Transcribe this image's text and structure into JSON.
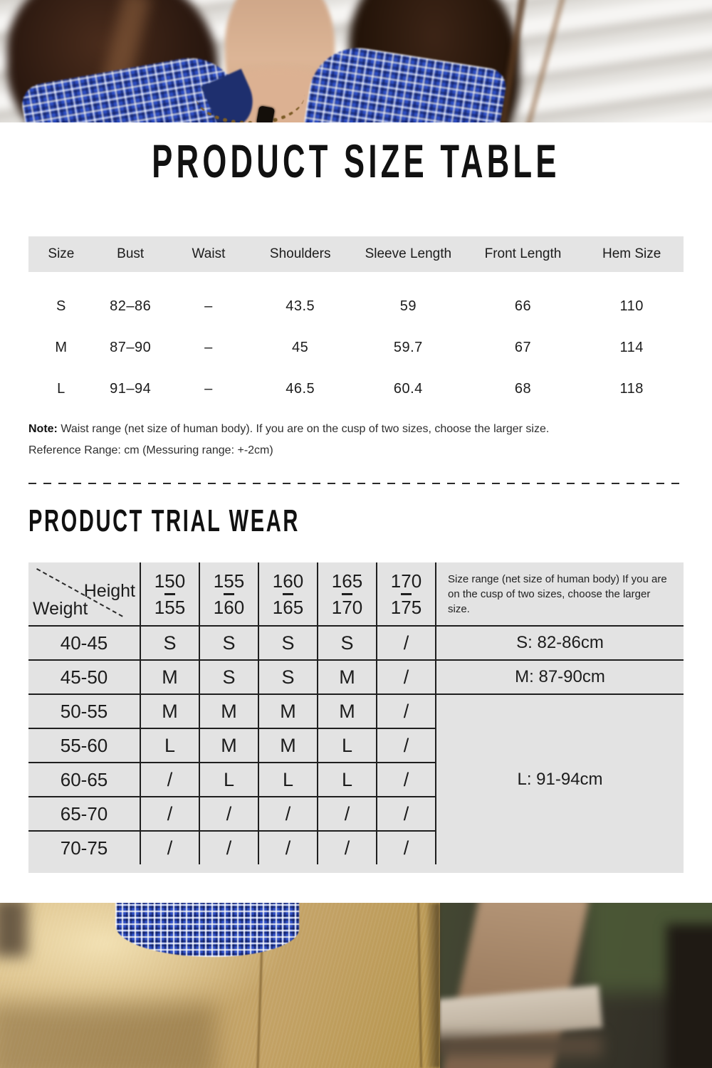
{
  "size_table": {
    "title": "PRODUCT SIZE TABLE",
    "columns": [
      "Size",
      "Bust",
      "Waist",
      "Shoulders",
      "Sleeve Length",
      "Front Length",
      "Hem Size"
    ],
    "rows": [
      [
        "S",
        "82–86",
        "–",
        "43.5",
        "59",
        "66",
        "110"
      ],
      [
        "M",
        "87–90",
        "–",
        "45",
        "59.7",
        "67",
        "114"
      ],
      [
        "L",
        "91–94",
        "–",
        "46.5",
        "60.4",
        "68",
        "118"
      ]
    ],
    "note_label": "Note:",
    "note_text": "Waist range (net size of human body). If you are on the cusp of two sizes, choose the larger size.",
    "reference_text": "Reference Range: cm (Messuring range: +-2cm)"
  },
  "trial_wear": {
    "title": "PRODUCT TRIAL WEAR",
    "corner": {
      "top_label": "Height",
      "bottom_label": "Weight"
    },
    "height_columns": [
      {
        "from": "150",
        "to": "155"
      },
      {
        "from": "155",
        "to": "160"
      },
      {
        "from": "160",
        "to": "165"
      },
      {
        "from": "165",
        "to": "170"
      },
      {
        "from": "170",
        "to": "175"
      }
    ],
    "weight_rows": [
      "40-45",
      "45-50",
      "50-55",
      "55-60",
      "60-65",
      "65-70",
      "70-75"
    ],
    "cells": [
      [
        "S",
        "S",
        "S",
        "S",
        "/"
      ],
      [
        "M",
        "S",
        "S",
        "M",
        "/"
      ],
      [
        "M",
        "M",
        "M",
        "M",
        "/"
      ],
      [
        "L",
        "M",
        "M",
        "L",
        "/"
      ],
      [
        "/",
        "L",
        "L",
        "L",
        "/"
      ],
      [
        "/",
        "/",
        "/",
        "/",
        "/"
      ],
      [
        "/",
        "/",
        "/",
        "/",
        "/"
      ]
    ],
    "side_note": "Size range (net size of human body) If you are on the cusp of two sizes, choose the larger size.",
    "size_ranges": [
      "S: 82-86cm",
      "M: 87-90cm",
      "L: 91-94cm"
    ]
  },
  "colors": {
    "table_header_bg": "#e4e4e4",
    "trial_table_bg": "#e3e3e3",
    "grid_line": "#1f1f1f",
    "text": "#1c1c1c",
    "shirt_blue": "#2d4ec5",
    "pants_khaki": "#c4a46b"
  }
}
